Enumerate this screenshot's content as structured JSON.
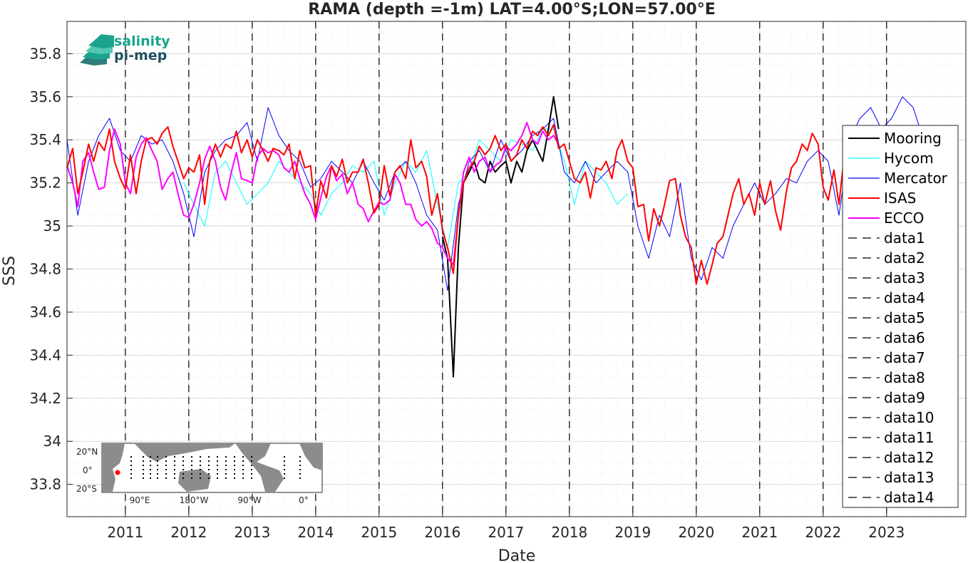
{
  "chart_data": {
    "type": "line",
    "title": "RAMA (depth =-1m) LAT=4.00°S;LON=57.00°E",
    "xlabel": "Date",
    "ylabel": "SSS",
    "xlim": [
      2010.08,
      2024.25
    ],
    "ylim": [
      33.65,
      35.95
    ],
    "x_ticks": [
      "2011",
      "2012",
      "2013",
      "2014",
      "2015",
      "2016",
      "2017",
      "2018",
      "2019",
      "2020",
      "2021",
      "2022",
      "2023"
    ],
    "y_ticks": [
      "33.8",
      "34",
      "34.2",
      "34.4",
      "34.6",
      "34.8",
      "35",
      "35.2",
      "35.4",
      "35.6",
      "35.8"
    ],
    "grid": true,
    "legend_position": "right",
    "colors": {
      "Mooring": "#000000",
      "Hycom": "#00ffff",
      "Mercator": "#0000ff",
      "ISAS": "#ff0000",
      "ECCO": "#ff00ff",
      "data": "#000000"
    },
    "legend": [
      "Mooring",
      "Hycom",
      "Mercator",
      "ISAS",
      "ECCO",
      "data1",
      "data2",
      "data3",
      "data4",
      "data5",
      "data6",
      "data7",
      "data8",
      "data9",
      "data10",
      "data11",
      "data12",
      "data13",
      "data14"
    ],
    "dashed_vertical_lines_x": [
      2011,
      2012,
      2013,
      2014,
      2015,
      2016,
      2017,
      2018,
      2019,
      2020,
      2021,
      2022,
      2023
    ],
    "series": [
      {
        "name": "ISAS",
        "x": [
          2010.08,
          2010.17,
          2010.25,
          2010.33,
          2010.42,
          2010.5,
          2010.58,
          2010.67,
          2010.75,
          2010.83,
          2010.92,
          2011.0,
          2011.08,
          2011.17,
          2011.25,
          2011.33,
          2011.42,
          2011.5,
          2011.58,
          2011.67,
          2011.75,
          2011.83,
          2011.92,
          2012.0,
          2012.08,
          2012.17,
          2012.25,
          2012.33,
          2012.42,
          2012.5,
          2012.58,
          2012.67,
          2012.75,
          2012.83,
          2012.92,
          2013.0,
          2013.08,
          2013.17,
          2013.25,
          2013.33,
          2013.42,
          2013.5,
          2013.58,
          2013.67,
          2013.75,
          2013.83,
          2013.92,
          2014.0,
          2014.08,
          2014.17,
          2014.25,
          2014.33,
          2014.42,
          2014.5,
          2014.58,
          2014.67,
          2014.75,
          2014.83,
          2014.92,
          2015.0,
          2015.08,
          2015.17,
          2015.25,
          2015.33,
          2015.42,
          2015.5,
          2015.58,
          2015.67,
          2015.75,
          2015.83,
          2015.92,
          2016.0,
          2016.08,
          2016.17,
          2016.25,
          2016.33,
          2016.42,
          2016.5,
          2016.58,
          2016.67,
          2016.75,
          2016.83,
          2016.92,
          2017.0,
          2017.08,
          2017.17,
          2017.25,
          2017.33,
          2017.42,
          2017.5,
          2017.58,
          2017.67,
          2017.75,
          2017.83,
          2017.92,
          2018.0,
          2018.08,
          2018.17,
          2018.25,
          2018.33,
          2018.42,
          2018.5,
          2018.58,
          2018.67,
          2018.75,
          2018.83,
          2018.92,
          2019.0,
          2019.08,
          2019.17,
          2019.25,
          2019.33,
          2019.42,
          2019.5,
          2019.58,
          2019.67,
          2019.75,
          2019.83,
          2019.92,
          2020.0,
          2020.08,
          2020.17,
          2020.25,
          2020.33,
          2020.42,
          2020.5,
          2020.58,
          2020.67,
          2020.75,
          2020.83,
          2020.92,
          2021.0,
          2021.08,
          2021.17,
          2021.25,
          2021.33,
          2021.42,
          2021.5,
          2021.58,
          2021.67,
          2021.75,
          2021.83,
          2021.92,
          2022.0,
          2022.08,
          2022.17,
          2022.25,
          2022.33,
          2022.42
        ],
        "values": [
          35.27,
          35.36,
          35.15,
          35.25,
          35.38,
          35.3,
          35.39,
          35.35,
          35.45,
          35.3,
          35.22,
          35.17,
          35.33,
          35.15,
          35.3,
          35.4,
          35.41,
          35.38,
          35.43,
          35.46,
          35.37,
          35.3,
          35.22,
          35.27,
          35.25,
          35.33,
          35.1,
          35.3,
          35.38,
          35.32,
          35.38,
          35.36,
          35.44,
          35.34,
          35.4,
          35.32,
          35.4,
          35.35,
          35.3,
          35.36,
          35.35,
          35.33,
          35.38,
          35.22,
          35.35,
          35.27,
          35.28,
          35.05,
          35.21,
          35.13,
          35.28,
          35.23,
          35.31,
          35.2,
          35.25,
          35.25,
          35.31,
          35.2,
          35.06,
          35.1,
          35.28,
          35.14,
          35.25,
          35.28,
          35.22,
          35.4,
          35.27,
          35.3,
          35.23,
          35.05,
          35.15,
          34.98,
          34.9,
          34.78,
          35.05,
          35.2,
          35.27,
          35.3,
          35.37,
          35.33,
          35.36,
          35.42,
          35.35,
          35.38,
          35.3,
          35.33,
          35.4,
          35.36,
          35.44,
          35.42,
          35.46,
          35.42,
          35.47,
          35.36,
          35.38,
          35.3,
          35.22,
          35.2,
          35.25,
          35.13,
          35.27,
          35.26,
          35.3,
          35.22,
          35.35,
          35.4,
          35.3,
          35.27,
          35.09,
          35.1,
          34.93,
          35.08,
          35.0,
          35.1,
          35.21,
          35.22,
          35.05,
          34.95,
          34.9,
          34.73,
          34.84,
          34.73,
          34.82,
          34.92,
          34.95,
          35.05,
          35.15,
          35.22,
          35.1,
          35.15,
          35.05,
          35.2,
          35.1,
          35.21,
          35.07,
          34.98,
          35.16,
          35.27,
          35.3,
          35.38,
          35.35,
          35.43,
          35.38,
          35.18,
          35.12,
          35.26,
          35.1,
          35.32,
          35.38
        ]
      },
      {
        "name": "ECCO",
        "x": [
          2010.08,
          2010.17,
          2010.25,
          2010.33,
          2010.42,
          2010.5,
          2010.58,
          2010.67,
          2010.75,
          2010.83,
          2010.92,
          2011.0,
          2011.08,
          2011.17,
          2011.25,
          2011.33,
          2011.42,
          2011.5,
          2011.58,
          2011.67,
          2011.75,
          2011.83,
          2011.92,
          2012.0,
          2012.08,
          2012.17,
          2012.25,
          2012.33,
          2012.42,
          2012.5,
          2012.58,
          2012.67,
          2012.75,
          2012.83,
          2012.92,
          2013.0,
          2013.08,
          2013.17,
          2013.25,
          2013.33,
          2013.42,
          2013.5,
          2013.58,
          2013.67,
          2013.75,
          2013.83,
          2013.92,
          2014.0,
          2014.08,
          2014.17,
          2014.25,
          2014.33,
          2014.42,
          2014.5,
          2014.58,
          2014.67,
          2014.75,
          2014.83,
          2014.92,
          2015.0,
          2015.08,
          2015.17,
          2015.25,
          2015.33,
          2015.42,
          2015.5,
          2015.58,
          2015.67,
          2015.75,
          2015.83,
          2015.92,
          2016.0,
          2016.08,
          2016.17,
          2016.25,
          2016.33,
          2016.42,
          2016.5,
          2016.58,
          2016.67,
          2016.75,
          2016.83,
          2016.92,
          2017.0,
          2017.08,
          2017.17,
          2017.25,
          2017.33,
          2017.42,
          2017.5,
          2017.58,
          2017.67,
          2017.75,
          2017.83
        ],
        "values": [
          35.28,
          35.2,
          35.09,
          35.3,
          35.34,
          35.25,
          35.17,
          35.18,
          35.35,
          35.45,
          35.38,
          35.2,
          35.15,
          35.32,
          35.38,
          35.41,
          35.35,
          35.3,
          35.17,
          35.22,
          35.25,
          35.15,
          35.05,
          35.04,
          35.1,
          35.2,
          35.31,
          35.37,
          35.3,
          35.18,
          35.12,
          35.25,
          35.34,
          35.22,
          35.21,
          35.2,
          35.32,
          35.36,
          35.34,
          35.35,
          35.33,
          35.27,
          35.25,
          35.3,
          35.22,
          35.15,
          35.1,
          35.03,
          35.13,
          35.23,
          35.28,
          35.21,
          35.24,
          35.15,
          35.2,
          35.1,
          35.08,
          35.02,
          35.07,
          35.11,
          35.1,
          35.12,
          35.24,
          35.2,
          35.1,
          35.1,
          35.03,
          35.0,
          35.02,
          34.99,
          34.92,
          34.9,
          34.85,
          34.82,
          35.05,
          35.25,
          35.32,
          35.25,
          35.3,
          35.32,
          35.25,
          35.28,
          35.3,
          35.37,
          35.35,
          35.38,
          35.42,
          35.48,
          35.4,
          35.38,
          35.44,
          35.4,
          35.42,
          35.38
        ]
      },
      {
        "name": "Mercator",
        "x": [
          2010.08,
          2010.25,
          2010.42,
          2010.58,
          2010.75,
          2010.92,
          2011.08,
          2011.25,
          2011.42,
          2011.58,
          2011.75,
          2011.92,
          2012.08,
          2012.25,
          2012.42,
          2012.58,
          2012.75,
          2012.92,
          2013.08,
          2013.25,
          2013.42,
          2013.58,
          2013.75,
          2013.92,
          2014.08,
          2014.25,
          2014.42,
          2014.58,
          2014.75,
          2014.92,
          2015.08,
          2015.25,
          2015.42,
          2015.58,
          2015.75,
          2015.92,
          2016.08,
          2016.25,
          2016.42,
          2016.58,
          2016.75,
          2016.92,
          2017.08,
          2017.25,
          2017.42,
          2017.58,
          2017.75,
          2017.92,
          2018.08,
          2018.25,
          2018.42,
          2018.58,
          2018.75,
          2018.92,
          2019.08,
          2019.25,
          2019.42,
          2019.58,
          2019.75,
          2019.92,
          2020.08,
          2020.25,
          2020.42,
          2020.58,
          2020.75,
          2020.92,
          2021.08,
          2021.25,
          2021.42,
          2021.58,
          2021.75,
          2021.92,
          2022.08,
          2022.25,
          2022.42,
          2022.58,
          2022.75,
          2022.92,
          2023.08,
          2023.25,
          2023.42,
          2023.58
        ],
        "values": [
          35.4,
          35.05,
          35.3,
          35.42,
          35.5,
          35.35,
          35.3,
          35.42,
          35.38,
          35.4,
          35.3,
          35.15,
          34.95,
          35.25,
          35.35,
          35.4,
          35.42,
          35.48,
          35.3,
          35.55,
          35.42,
          35.35,
          35.3,
          35.18,
          35.22,
          35.3,
          35.25,
          35.2,
          35.3,
          35.2,
          35.12,
          35.25,
          35.3,
          35.2,
          35.05,
          34.98,
          34.7,
          35.1,
          35.3,
          35.35,
          35.25,
          35.4,
          35.3,
          35.35,
          35.42,
          35.45,
          35.5,
          35.25,
          35.2,
          35.3,
          35.2,
          35.25,
          35.3,
          35.25,
          35.0,
          34.85,
          35.05,
          34.95,
          35.2,
          34.85,
          34.75,
          34.9,
          34.85,
          35.0,
          35.1,
          35.2,
          35.1,
          35.15,
          35.22,
          35.2,
          35.3,
          35.35,
          35.3,
          35.05,
          35.4,
          35.5,
          35.55,
          35.45,
          35.5,
          35.6,
          35.55,
          35.4
        ]
      },
      {
        "name": "Hycom",
        "x": [
          2011.92,
          2012.08,
          2012.25,
          2012.42,
          2012.58,
          2012.75,
          2012.92,
          2013.08,
          2013.25,
          2013.42,
          2013.58,
          2013.75,
          2013.92,
          2014.08,
          2014.25,
          2014.42,
          2014.58,
          2014.75,
          2014.92,
          2015.08,
          2015.25,
          2015.42,
          2015.58,
          2015.75,
          2015.92,
          2016.08,
          2016.25,
          2016.42,
          2016.58,
          2016.75,
          2016.92,
          2017.08,
          2017.25,
          2017.42,
          2017.58,
          2017.75,
          2017.92,
          2018.08,
          2018.25,
          2018.42,
          2018.58,
          2018.75,
          2018.92
        ],
        "values": [
          35.2,
          35.1,
          35.0,
          35.25,
          35.3,
          35.2,
          35.1,
          35.15,
          35.2,
          35.3,
          35.25,
          35.2,
          35.15,
          35.05,
          35.15,
          35.2,
          35.28,
          35.25,
          35.3,
          35.05,
          35.2,
          35.3,
          35.25,
          35.35,
          35.1,
          34.9,
          35.2,
          35.25,
          35.4,
          35.35,
          35.3,
          35.4,
          35.38,
          35.35,
          35.45,
          35.45,
          35.3,
          35.1,
          35.3,
          35.25,
          35.2,
          35.1,
          35.15
        ]
      },
      {
        "name": "Mooring",
        "x": [
          2016.0,
          2016.08,
          2016.17,
          2016.25,
          2016.33,
          2016.42,
          2016.5,
          2016.58,
          2016.67,
          2016.75,
          2016.83,
          2016.92,
          2017.0,
          2017.08,
          2017.17,
          2017.25,
          2017.33,
          2017.42,
          2017.5,
          2017.58,
          2017.67,
          2017.75,
          2017.83
        ],
        "values": [
          34.95,
          34.85,
          34.3,
          34.9,
          35.2,
          35.25,
          35.3,
          35.22,
          35.2,
          35.3,
          35.25,
          35.28,
          35.3,
          35.2,
          35.3,
          35.25,
          35.35,
          35.4,
          35.35,
          35.3,
          35.45,
          35.6,
          35.45
        ]
      }
    ]
  },
  "logo": {
    "line1": "salinity",
    "line2": "pi-mep"
  },
  "inset_map": {
    "lat_labels": [
      "20°N",
      "0°",
      "20°S"
    ],
    "lon_labels": [
      "90°E",
      "180°W",
      "90°W",
      "0°"
    ]
  }
}
